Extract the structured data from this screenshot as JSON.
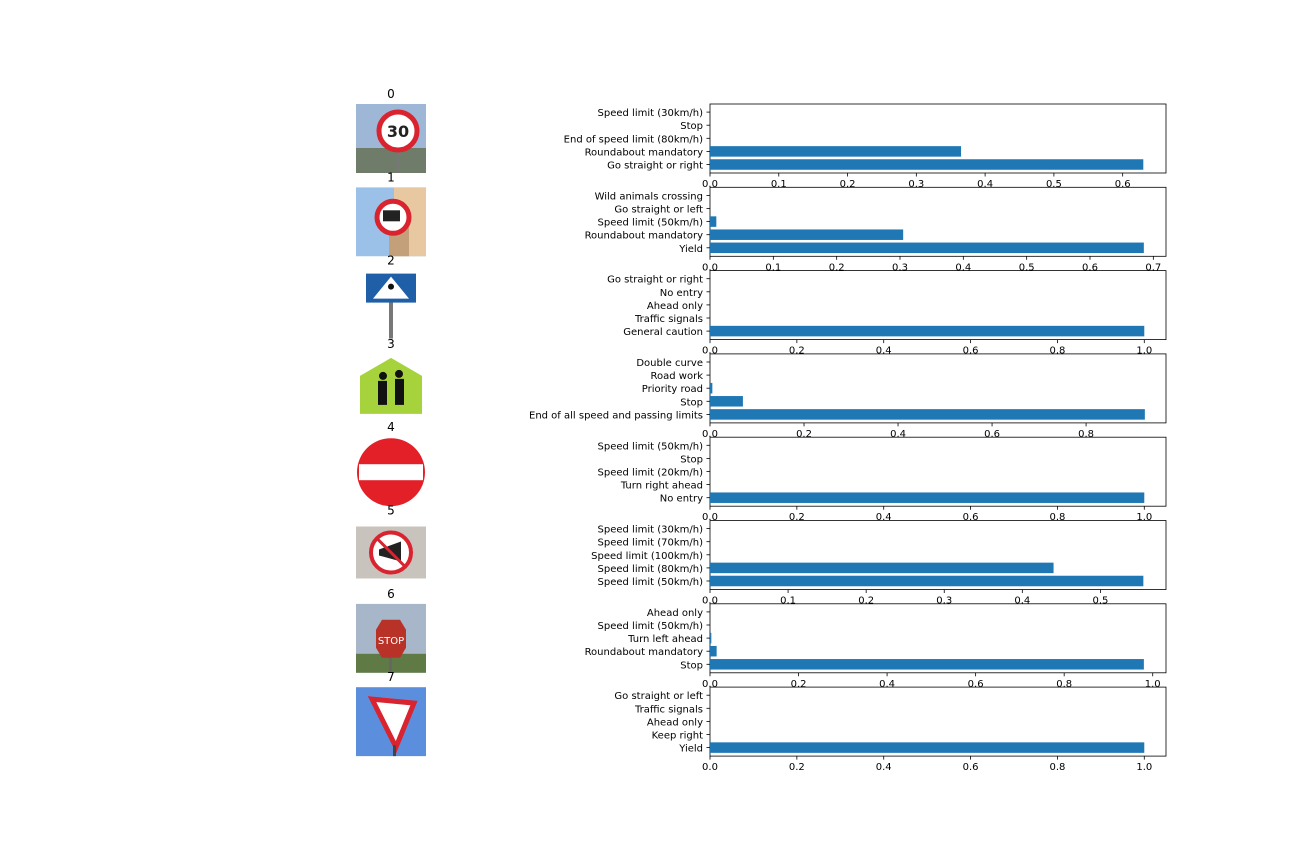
{
  "colors": {
    "bar": "#1f77b4",
    "axis": "#000000"
  },
  "chart_data": [
    {
      "type": "bar",
      "orientation": "horizontal",
      "title": "0",
      "image_icon": "speed-limit-30-sign-photo",
      "categories": [
        "Go straight or right",
        "Roundabout mandatory",
        "End of speed limit (80km/h)",
        "Stop",
        "Speed limit (30km/h)"
      ],
      "values": [
        0.63,
        0.365,
        0,
        0,
        0
      ],
      "xlim": [
        0,
        0.663
      ],
      "xticks": [
        "0.0",
        "0.1",
        "0.2",
        "0.3",
        "0.4",
        "0.5",
        "0.6"
      ]
    },
    {
      "type": "bar",
      "orientation": "horizontal",
      "title": "1",
      "image_icon": "no-trucks-sign-photo",
      "categories": [
        "Yield",
        "Roundabout mandatory",
        "Speed limit (50km/h)",
        "Go straight or left",
        "Wild animals crossing"
      ],
      "values": [
        0.685,
        0.305,
        0.01,
        0,
        0
      ],
      "xlim": [
        0,
        0.72
      ],
      "xticks": [
        "0.0",
        "0.1",
        "0.2",
        "0.3",
        "0.4",
        "0.5",
        "0.6",
        "0.7"
      ]
    },
    {
      "type": "bar",
      "orientation": "horizontal",
      "title": "2",
      "image_icon": "pedestrian-crossing-sign-photo",
      "categories": [
        "General caution",
        "Traffic signals",
        "Ahead only",
        "No entry",
        "Go straight or right"
      ],
      "values": [
        1.0,
        0,
        0,
        0,
        0
      ],
      "xlim": [
        0,
        1.05
      ],
      "xticks": [
        "0.0",
        "0.2",
        "0.4",
        "0.6",
        "0.8",
        "1.0"
      ]
    },
    {
      "type": "bar",
      "orientation": "horizontal",
      "title": "3",
      "image_icon": "school-crossing-sign-photo",
      "categories": [
        "End of all speed and passing limits",
        "Stop",
        "Priority road",
        "Road work",
        "Double curve"
      ],
      "values": [
        0.925,
        0.07,
        0.005,
        0,
        0
      ],
      "xlim": [
        0,
        0.97
      ],
      "xticks": [
        "0.0",
        "0.2",
        "0.4",
        "0.6",
        "0.8"
      ]
    },
    {
      "type": "bar",
      "orientation": "horizontal",
      "title": "4",
      "image_icon": "no-entry-sign-photo",
      "categories": [
        "No entry",
        "Turn right ahead",
        "Speed limit (20km/h)",
        "Stop",
        "Speed limit (50km/h)"
      ],
      "values": [
        1.0,
        0,
        0,
        0,
        0
      ],
      "xlim": [
        0,
        1.05
      ],
      "xticks": [
        "0.0",
        "0.2",
        "0.4",
        "0.6",
        "0.8",
        "1.0"
      ]
    },
    {
      "type": "bar",
      "orientation": "horizontal",
      "title": "5",
      "image_icon": "no-horn-sign-photo",
      "categories": [
        "Speed limit (50km/h)",
        "Speed limit (80km/h)",
        "Speed limit (100km/h)",
        "Speed limit (70km/h)",
        "Speed limit (30km/h)"
      ],
      "values": [
        0.555,
        0.44,
        0,
        0,
        0
      ],
      "xlim": [
        0,
        0.584
      ],
      "xticks": [
        "0.0",
        "0.1",
        "0.2",
        "0.3",
        "0.4",
        "0.5"
      ]
    },
    {
      "type": "bar",
      "orientation": "horizontal",
      "title": "6",
      "image_icon": "stop-sign-photo",
      "categories": [
        "Stop",
        "Roundabout mandatory",
        "Turn left ahead",
        "Speed limit (50km/h)",
        "Ahead only"
      ],
      "values": [
        0.98,
        0.015,
        0.003,
        0,
        0
      ],
      "xlim": [
        0,
        1.03
      ],
      "xticks": [
        "0.0",
        "0.2",
        "0.4",
        "0.6",
        "0.8",
        "1.0"
      ]
    },
    {
      "type": "bar",
      "orientation": "horizontal",
      "title": "7",
      "image_icon": "yield-sign-photo",
      "categories": [
        "Yield",
        "Keep right",
        "Ahead only",
        "Traffic signals",
        "Go straight or left"
      ],
      "values": [
        1.0,
        0,
        0,
        0,
        0
      ],
      "xlim": [
        0,
        1.05
      ],
      "xticks": [
        "0.0",
        "0.2",
        "0.4",
        "0.6",
        "0.8",
        "1.0"
      ]
    }
  ]
}
